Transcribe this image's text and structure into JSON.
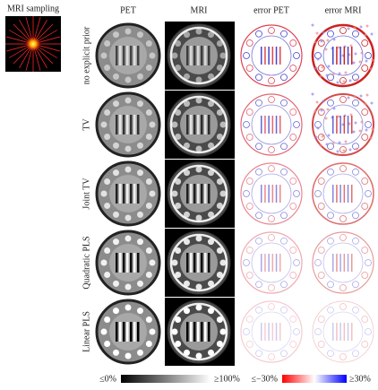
{
  "figure": {
    "sampling_title": "MRI sampling",
    "columns": [
      "PET",
      "MRI",
      "error PET",
      "error MRI"
    ],
    "rows": [
      "no explicit prior",
      "TV",
      "Joint TV",
      "Quadratic PLS",
      "Linear PLS"
    ],
    "colorbars": [
      {
        "min_label": "≤0%",
        "max_label": "≥100%"
      },
      {
        "min_label": "≤−30%",
        "max_label": "≥30%"
      }
    ]
  }
}
